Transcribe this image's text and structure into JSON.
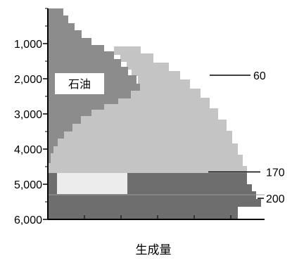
{
  "chart_data": {
    "type": "area",
    "xlabel": "生成量",
    "ylabel": "",
    "ylim": [
      0,
      6000
    ],
    "y_tick_labels": [
      "1,000",
      "2,000",
      "3,000",
      "4,000",
      "5,000",
      "6,000"
    ],
    "y_ticks": [
      1000,
      2000,
      3000,
      4000,
      5000,
      6000
    ],
    "y_axis_inverted": true,
    "grid": false,
    "regions": [
      {
        "label": "石油",
        "color": "#8c8c8c",
        "depth_range": [
          0,
          4600
        ]
      },
      {
        "label": "",
        "color": "#c4c4c4",
        "depth_range": [
          1000,
          4600
        ]
      },
      {
        "label": "",
        "color": "#6e6e6e",
        "depth_range": [
          4600,
          6000
        ]
      }
    ],
    "annotations": [
      {
        "text": "60",
        "depth": 1900
      },
      {
        "text": "170",
        "depth": 4650
      },
      {
        "text": "200",
        "depth": 5400
      }
    ]
  }
}
